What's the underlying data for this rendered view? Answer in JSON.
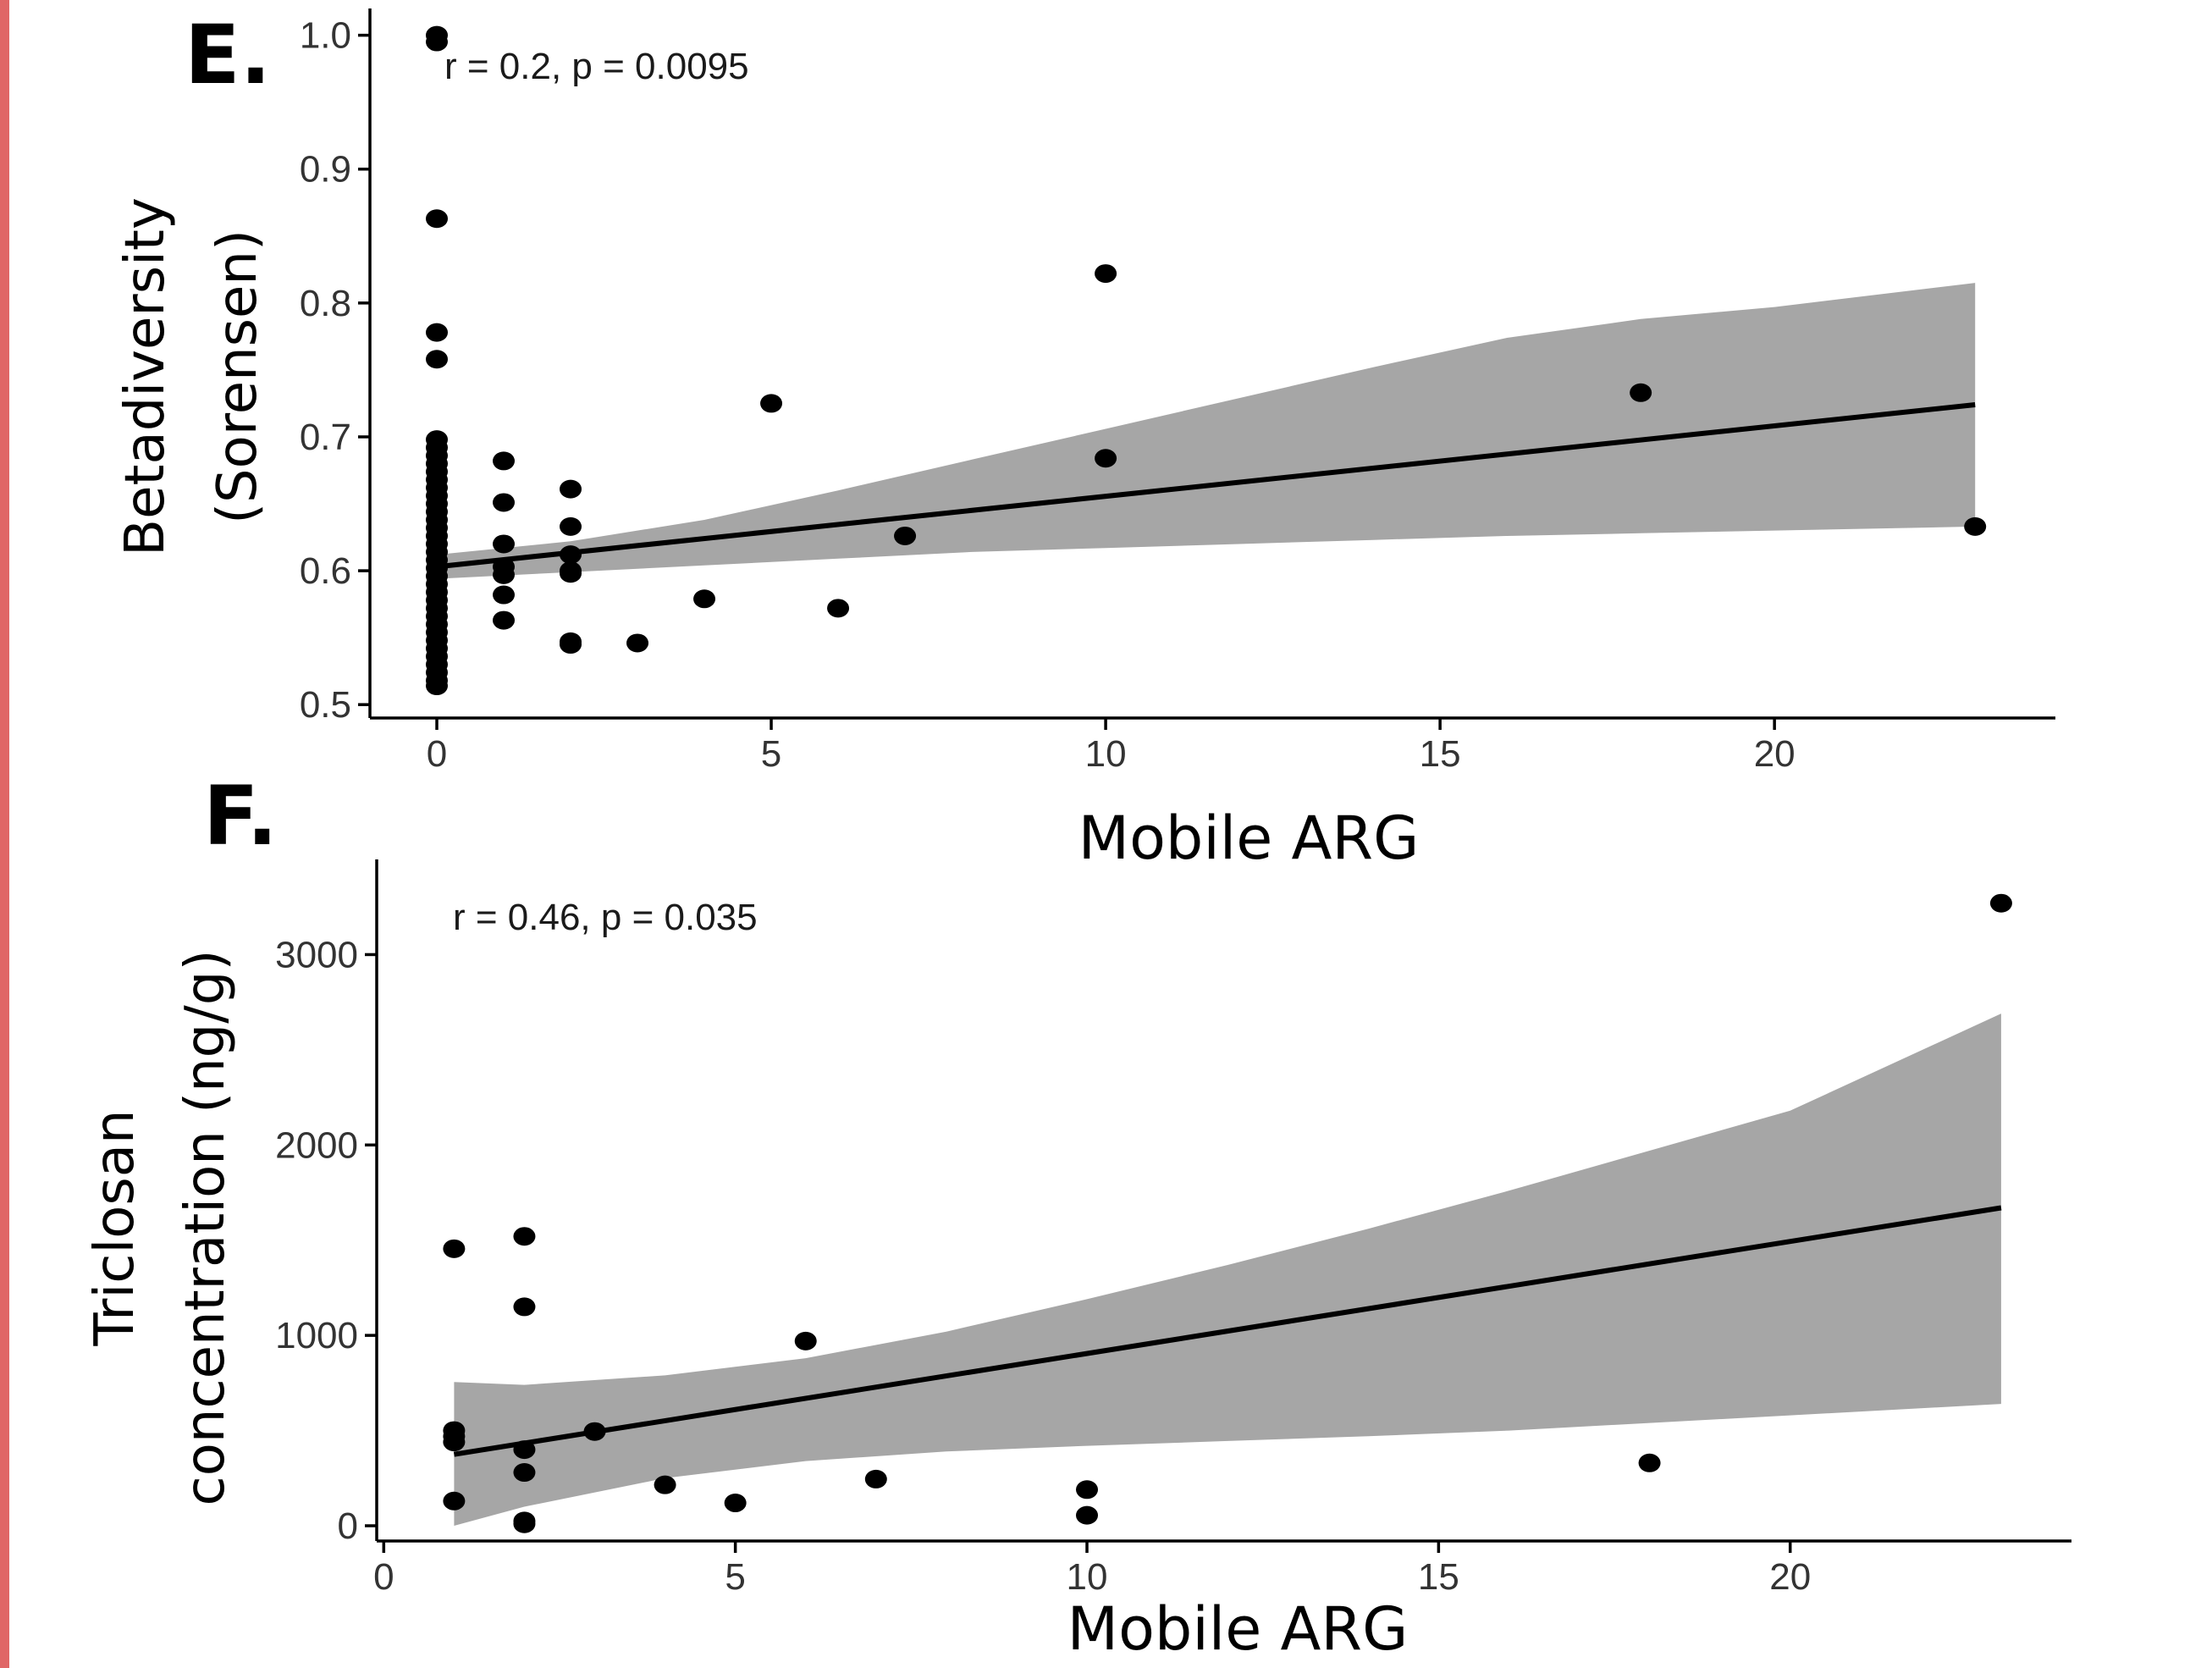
{
  "colors": {
    "border": "#e06666",
    "point": "#000000",
    "band": "#a6a6a6",
    "line": "#000000",
    "axis": "#000000"
  },
  "chart_data": [
    {
      "type": "scatter",
      "panel_label": "E.",
      "annotation": "r = 0.2, p = 0.0095",
      "xlabel": "Mobile ARG",
      "ylabel": [
        "Betadiversity",
        "(Sorensen)"
      ],
      "xlim": [
        -1,
        24.2
      ],
      "ylim": [
        0.49,
        1.02
      ],
      "xticks": [
        0,
        5,
        10,
        15,
        20
      ],
      "yticks": [
        0.5,
        0.6,
        0.7,
        0.8,
        0.9,
        1.0
      ],
      "ytick_labels": [
        "0.5",
        "0.6",
        "0.7",
        "0.8",
        "0.9",
        "1.0"
      ],
      "grid": false,
      "points": [
        [
          0,
          1.0
        ],
        [
          0,
          0.995
        ],
        [
          0,
          0.863
        ],
        [
          0,
          0.778
        ],
        [
          0,
          0.758
        ],
        [
          0,
          0.698
        ],
        [
          0,
          0.692
        ],
        [
          0,
          0.686
        ],
        [
          0,
          0.68
        ],
        [
          0,
          0.674
        ],
        [
          0,
          0.668
        ],
        [
          0,
          0.662
        ],
        [
          0,
          0.656
        ],
        [
          0,
          0.65
        ],
        [
          0,
          0.644
        ],
        [
          0,
          0.638
        ],
        [
          0,
          0.632
        ],
        [
          0,
          0.626
        ],
        [
          0,
          0.62
        ],
        [
          0,
          0.614
        ],
        [
          0,
          0.608
        ],
        [
          0,
          0.602
        ],
        [
          0,
          0.596
        ],
        [
          0,
          0.59
        ],
        [
          0,
          0.584
        ],
        [
          0,
          0.578
        ],
        [
          0,
          0.572
        ],
        [
          0,
          0.566
        ],
        [
          0,
          0.56
        ],
        [
          0,
          0.554
        ],
        [
          0,
          0.548
        ],
        [
          0,
          0.542
        ],
        [
          0,
          0.536
        ],
        [
          0,
          0.53
        ],
        [
          0,
          0.524
        ],
        [
          0,
          0.518
        ],
        [
          0,
          0.514
        ],
        [
          1,
          0.682
        ],
        [
          1,
          0.651
        ],
        [
          1,
          0.62
        ],
        [
          1,
          0.603
        ],
        [
          1,
          0.597
        ],
        [
          1,
          0.582
        ],
        [
          1,
          0.563
        ],
        [
          2,
          0.661
        ],
        [
          2,
          0.633
        ],
        [
          2,
          0.612
        ],
        [
          2,
          0.6
        ],
        [
          2,
          0.598
        ],
        [
          2,
          0.547
        ],
        [
          2,
          0.545
        ],
        [
          3,
          0.546
        ],
        [
          4,
          0.579
        ],
        [
          5,
          0.725
        ],
        [
          6,
          0.572
        ],
        [
          7,
          0.626
        ],
        [
          10,
          0.822
        ],
        [
          10,
          0.684
        ],
        [
          18,
          0.733
        ],
        [
          23,
          0.633
        ]
      ],
      "fit": {
        "x": [
          0,
          23
        ],
        "y": [
          0.603,
          0.724
        ]
      },
      "band": {
        "x": [
          0,
          2,
          4,
          6,
          8,
          10,
          12,
          14,
          16,
          18,
          20,
          23
        ],
        "upper": [
          0.612,
          0.622,
          0.638,
          0.66,
          0.683,
          0.706,
          0.729,
          0.752,
          0.774,
          0.788,
          0.797,
          0.815
        ],
        "lower": [
          0.594,
          0.599,
          0.604,
          0.609,
          0.614,
          0.617,
          0.62,
          0.623,
          0.626,
          0.628,
          0.63,
          0.633
        ]
      }
    },
    {
      "type": "scatter",
      "panel_label": "F.",
      "annotation": "r = 0.46, p = 0.035",
      "xlabel": "Mobile ARG",
      "ylabel": [
        "Triclosan",
        "concentration (ng/g)"
      ],
      "xlim": [
        -0.1,
        24
      ],
      "ylim": [
        -80,
        3500
      ],
      "xticks": [
        0,
        5,
        10,
        15,
        20
      ],
      "yticks": [
        0,
        1000,
        2000,
        3000
      ],
      "ytick_labels": [
        "0",
        "1000",
        "2000",
        "3000"
      ],
      "grid": false,
      "points": [
        [
          1,
          1455
        ],
        [
          1,
          500
        ],
        [
          1,
          470
        ],
        [
          1,
          440
        ],
        [
          1,
          130
        ],
        [
          2,
          1520
        ],
        [
          2,
          1150
        ],
        [
          2,
          400
        ],
        [
          2,
          280
        ],
        [
          2,
          25
        ],
        [
          2,
          10
        ],
        [
          3,
          495
        ],
        [
          4,
          215
        ],
        [
          5,
          120
        ],
        [
          6,
          970
        ],
        [
          7,
          245
        ],
        [
          10,
          190
        ],
        [
          10,
          55
        ],
        [
          18,
          330
        ],
        [
          23,
          3270
        ]
      ],
      "fit": {
        "x": [
          1,
          23
        ],
        "y": [
          375,
          1670
        ]
      },
      "band": {
        "x": [
          1,
          2,
          4,
          6,
          8,
          10,
          12,
          14,
          16,
          18,
          20,
          23
        ],
        "upper": [
          755,
          740,
          790,
          880,
          1020,
          1190,
          1370,
          1560,
          1760,
          1970,
          2180,
          2690
        ],
        "lower": [
          0,
          100,
          250,
          340,
          390,
          420,
          445,
          470,
          500,
          540,
          580,
          640
        ]
      }
    }
  ]
}
